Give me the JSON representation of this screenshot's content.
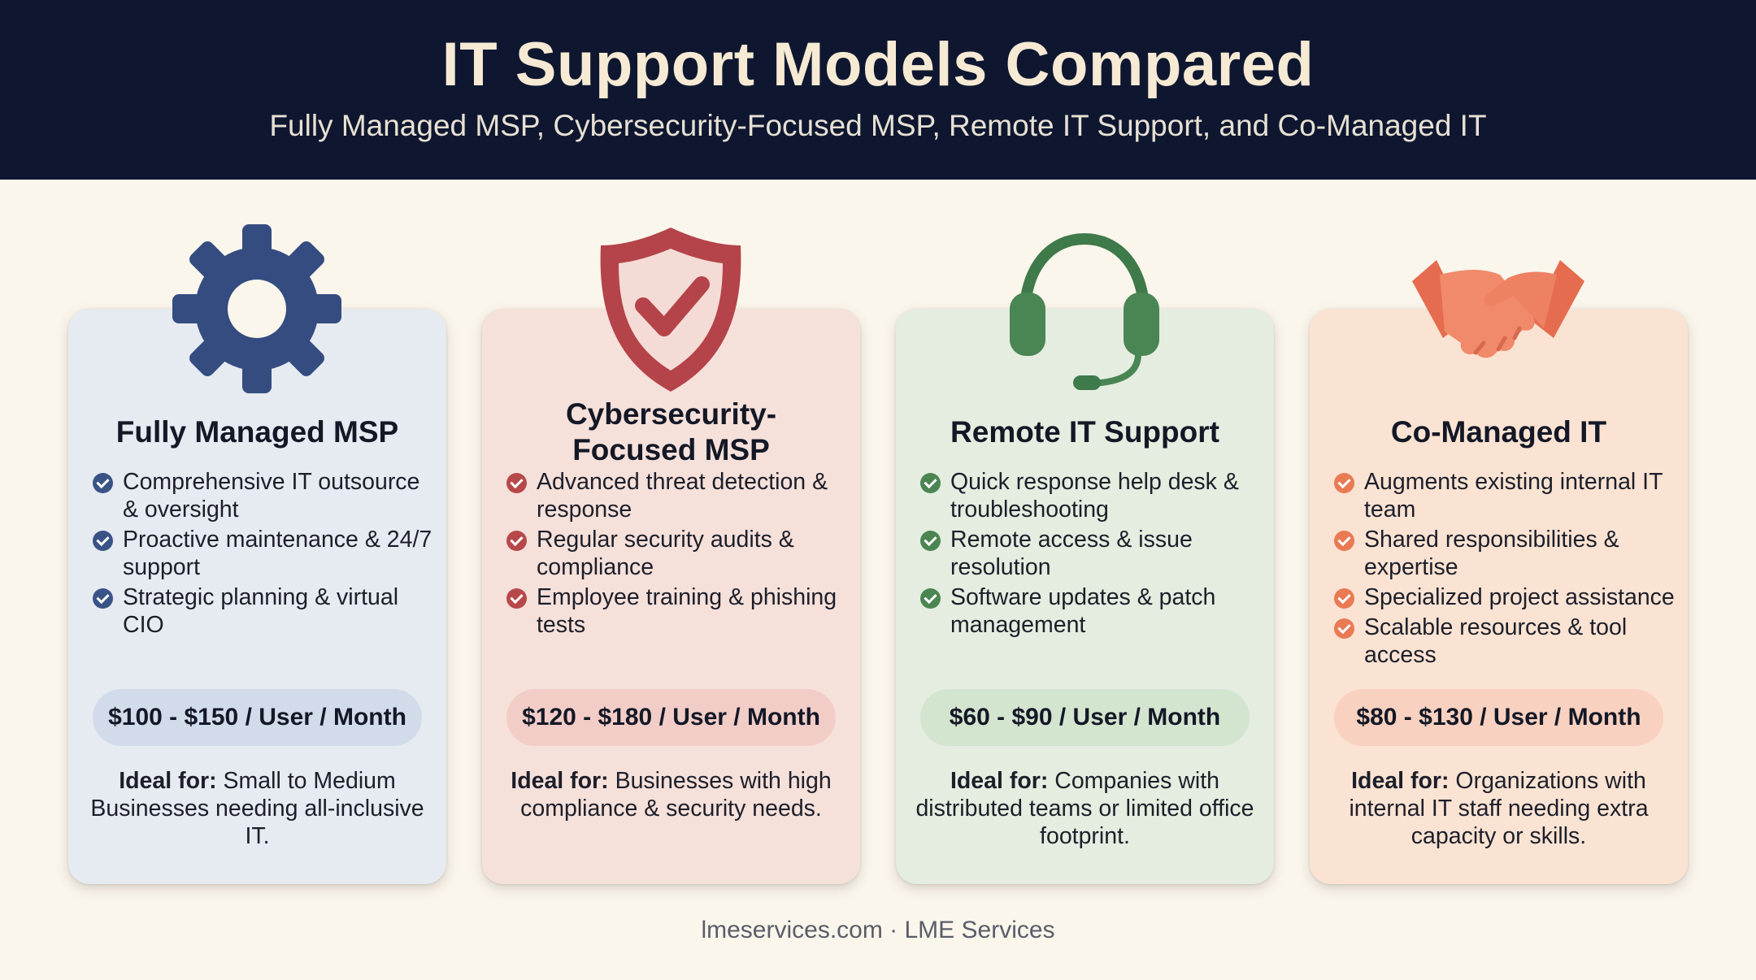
{
  "header": {
    "title": "IT Support Models Compared",
    "subtitle": "Fully Managed MSP, Cybersecurity-Focused MSP, Remote IT Support, and Co-Managed IT"
  },
  "cards": [
    {
      "icon": "gear-icon",
      "title": "Fully Managed MSP",
      "features": [
        "Comprehensive IT outsource & oversight",
        "Proactive maintenance & 24/7 support",
        "Strategic planning & virtual CIO"
      ],
      "price": "$100 - $150 / User / Month",
      "ideal_label": "Ideal for:",
      "ideal_text": "Small to Medium Businesses needing all-inclusive IT."
    },
    {
      "icon": "shield-check-icon",
      "title": "Cybersecurity-Focused MSP",
      "features": [
        "Advanced threat detection & response",
        "Regular security audits & compliance",
        "Employee training & phishing tests"
      ],
      "price": "$120 - $180 / User / Month",
      "ideal_label": "Ideal for:",
      "ideal_text": "Businesses with high compliance & security needs."
    },
    {
      "icon": "headset-icon",
      "title": "Remote IT Support",
      "features": [
        "Quick response help desk & troubleshooting",
        "Remote access & issue resolution",
        "Software updates & patch management"
      ],
      "price": "$60 - $90 / User / Month",
      "ideal_label": "Ideal for:",
      "ideal_text": "Companies with distributed teams or limited office footprint."
    },
    {
      "icon": "handshake-icon",
      "title": "Co-Managed IT",
      "features": [
        "Augments existing internal IT team",
        "Shared responsibilities & expertise",
        "Specialized project assistance",
        "Scalable resources & tool access"
      ],
      "price": "$80 - $130 / User / Month",
      "ideal_label": "Ideal for:",
      "ideal_text": "Organizations with internal IT staff needing extra capacity or skills."
    }
  ],
  "footer": "lmeservices.com · LME Services",
  "colors": {
    "header_bg": "#0f1730",
    "accent_blue": "#3a5387",
    "accent_red": "#b7484a",
    "accent_green": "#4b8552",
    "accent_orange": "#ea7a53"
  }
}
